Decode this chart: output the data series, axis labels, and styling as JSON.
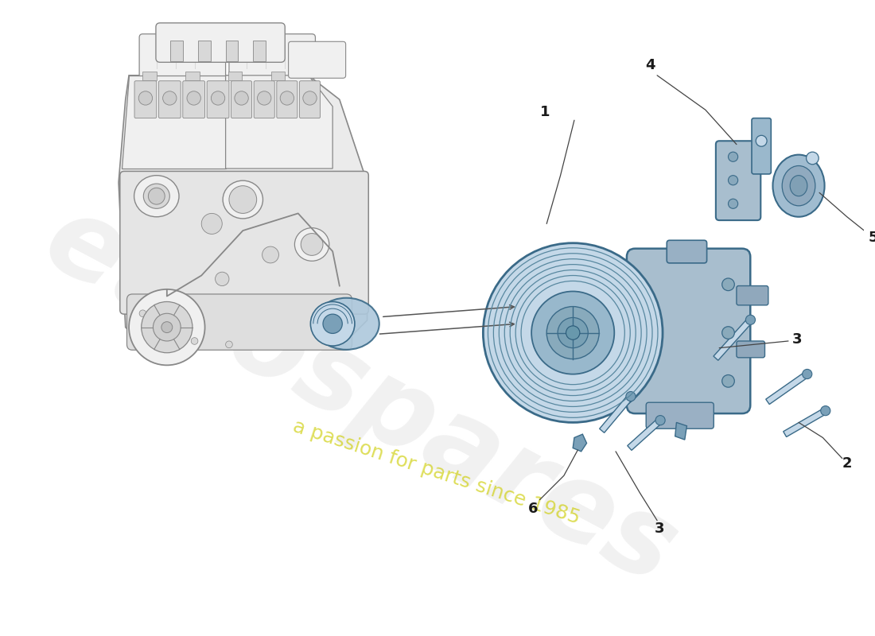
{
  "background_color": "#ffffff",
  "watermark_text1": "eurospares",
  "watermark_text2": "a passion for parts since 1985",
  "watermark_color": "#d0d0d0",
  "watermark_color2": "#cccc00",
  "label_color": "#1a1a1a",
  "line_color": "#444444",
  "part_fill_color": "#adc8dc",
  "part_fill_light": "#c4d8e8",
  "part_fill_dark": "#7aa0b8",
  "part_edge_color": "#3a6a88",
  "engine_fill": "#f0f0f0",
  "engine_edge": "#888888",
  "engine_detail": "#d8d8d8",
  "fig_width": 11.0,
  "fig_height": 8.0,
  "dpi": 100
}
